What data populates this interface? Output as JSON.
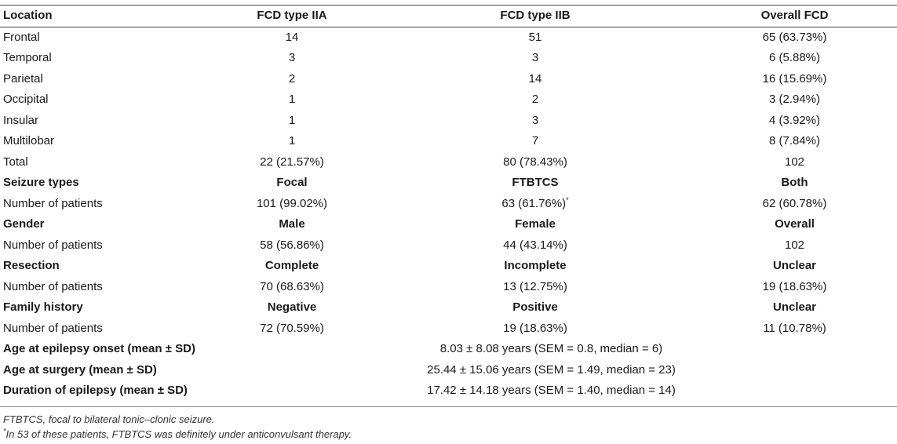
{
  "table": {
    "header": [
      "Location",
      "FCD type IIA",
      "FCD type IIB",
      "Overall FCD"
    ],
    "location_rows": [
      [
        "Frontal",
        "14",
        "51",
        "65 (63.73%)"
      ],
      [
        "Temporal",
        "3",
        "3",
        "6 (5.88%)"
      ],
      [
        "Parietal",
        "2",
        "14",
        "16 (15.69%)"
      ],
      [
        "Occipital",
        "1",
        "2",
        "3 (2.94%)"
      ],
      [
        "Insular",
        "1",
        "3",
        "4 (3.92%)"
      ],
      [
        "Multilobar",
        "1",
        "7",
        "8 (7.84%)"
      ],
      [
        "Total",
        "22 (21.57%)",
        "80 (78.43%)",
        "102"
      ]
    ],
    "seizure": {
      "header": [
        "Seizure types",
        "Focal",
        "FTBTCS",
        "Both"
      ],
      "row": [
        "Number of patients",
        "101 (99.02%)",
        "63 (61.76%)",
        "62 (60.78%)"
      ],
      "ftbtcs_marker": "*"
    },
    "gender": {
      "header": [
        "Gender",
        "Male",
        "Female",
        "Overall"
      ],
      "row": [
        "Number of patients",
        "58 (56.86%)",
        "44 (43.14%)",
        "102"
      ]
    },
    "resection": {
      "header": [
        "Resection",
        "Complete",
        "Incomplete",
        "Unclear"
      ],
      "row": [
        "Number of patients",
        "70 (68.63%)",
        "13 (12.75%)",
        "19 (18.63%)"
      ]
    },
    "family": {
      "header": [
        "Family history",
        "Negative",
        "Positive",
        "Unclear"
      ],
      "row": [
        "Number of patients",
        "72 (70.59%)",
        "19 (18.63%)",
        "11 (10.78%)"
      ]
    },
    "summary_rows": [
      [
        "Age at epilepsy onset (mean ± SD)",
        "8.03 ± 8.08 years (SEM = 0.8, median = 6)"
      ],
      [
        "Age at surgery (mean ± SD)",
        "25.44 ± 15.06 years (SEM = 1.49, median = 23)"
      ],
      [
        "Duration of epilepsy (mean ± SD)",
        "17.42 ± 14.18 years (SEM = 1.40, median = 14)"
      ]
    ]
  },
  "footnotes": {
    "abbrev": "FTBTCS, focal to bilateral tonic–clonic seizure.",
    "star_marker": "*",
    "star_text": "In 53 of these patients, FTBTCS was definitely under anticonvulsant therapy."
  }
}
